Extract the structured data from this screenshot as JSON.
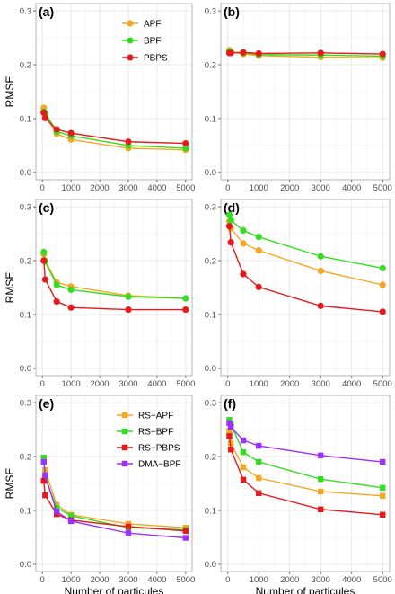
{
  "chart_data": [
    {
      "type": "line",
      "panel_label": "(a)",
      "ylabel": "RMSE",
      "xlabel": "",
      "xlim": [
        0,
        5000
      ],
      "ylim": [
        0,
        0.3
      ],
      "x_ticks": [
        0,
        1000,
        2000,
        3000,
        4000,
        5000
      ],
      "y_ticks": [
        0.0,
        0.1,
        0.2,
        0.3
      ],
      "y_tick_labels": [
        "0.0",
        "0.1",
        "0.2",
        "0.3"
      ],
      "marker": "circle",
      "legend": true,
      "legend_placement": "top-right",
      "x": [
        50,
        100,
        500,
        1000,
        3000,
        5000
      ],
      "series": [
        {
          "name": "APF",
          "color": "#f5a623",
          "values": [
            0.12,
            0.105,
            0.072,
            0.061,
            0.045,
            0.042
          ]
        },
        {
          "name": "BPF",
          "color": "#33dd22",
          "values": [
            0.113,
            0.11,
            0.076,
            0.068,
            0.05,
            0.045
          ]
        },
        {
          "name": "PBPS",
          "color": "#e41a1c",
          "values": [
            0.111,
            0.101,
            0.08,
            0.073,
            0.057,
            0.054
          ]
        }
      ]
    },
    {
      "type": "line",
      "panel_label": "(b)",
      "ylabel": "",
      "xlabel": "",
      "xlim": [
        0,
        5000
      ],
      "ylim": [
        0,
        0.3
      ],
      "x_ticks": [
        0,
        1000,
        2000,
        3000,
        4000,
        5000
      ],
      "y_ticks": [
        0.0,
        0.1,
        0.2,
        0.3
      ],
      "y_tick_labels": [
        "0.0",
        "0.1",
        "0.2",
        "0.3"
      ],
      "marker": "circle",
      "legend": false,
      "x": [
        50,
        100,
        500,
        1000,
        3000,
        5000
      ],
      "series": [
        {
          "name": "APF",
          "color": "#f5a623",
          "values": [
            0.227,
            0.224,
            0.22,
            0.217,
            0.214,
            0.213
          ]
        },
        {
          "name": "BPF",
          "color": "#33dd22",
          "values": [
            0.225,
            0.223,
            0.222,
            0.219,
            0.218,
            0.216
          ]
        },
        {
          "name": "PBPS",
          "color": "#e41a1c",
          "values": [
            0.222,
            0.222,
            0.223,
            0.221,
            0.222,
            0.22
          ]
        }
      ]
    },
    {
      "type": "line",
      "panel_label": "(c)",
      "ylabel": "RMSE",
      "xlabel": "",
      "xlim": [
        0,
        5000
      ],
      "ylim": [
        0,
        0.3
      ],
      "x_ticks": [
        0,
        1000,
        2000,
        3000,
        4000,
        5000
      ],
      "y_ticks": [
        0.0,
        0.1,
        0.2,
        0.3
      ],
      "y_tick_labels": [
        "0.0",
        "0.1",
        "0.2",
        "0.3"
      ],
      "marker": "circle",
      "legend": false,
      "x": [
        50,
        100,
        500,
        1000,
        3000,
        5000
      ],
      "series": [
        {
          "name": "APF",
          "color": "#f5a623",
          "values": [
            0.212,
            0.2,
            0.16,
            0.152,
            0.135,
            0.13
          ]
        },
        {
          "name": "BPF",
          "color": "#33dd22",
          "values": [
            0.216,
            0.198,
            0.155,
            0.146,
            0.133,
            0.13
          ]
        },
        {
          "name": "PBPS",
          "color": "#e41a1c",
          "values": [
            0.2,
            0.165,
            0.124,
            0.113,
            0.109,
            0.109
          ]
        }
      ]
    },
    {
      "type": "line",
      "panel_label": "(d)",
      "ylabel": "",
      "xlabel": "",
      "xlim": [
        0,
        5000
      ],
      "ylim": [
        0,
        0.3
      ],
      "x_ticks": [
        0,
        1000,
        2000,
        3000,
        4000,
        5000
      ],
      "y_ticks": [
        0.0,
        0.1,
        0.2,
        0.3
      ],
      "y_tick_labels": [
        "0.0",
        "0.1",
        "0.2",
        "0.3"
      ],
      "marker": "circle",
      "legend": false,
      "x": [
        50,
        100,
        500,
        1000,
        3000,
        5000
      ],
      "series": [
        {
          "name": "APF",
          "color": "#f5a623",
          "values": [
            0.273,
            0.26,
            0.232,
            0.219,
            0.181,
            0.155
          ]
        },
        {
          "name": "BPF",
          "color": "#33dd22",
          "values": [
            0.285,
            0.275,
            0.256,
            0.244,
            0.208,
            0.186
          ]
        },
        {
          "name": "PBPS",
          "color": "#e41a1c",
          "values": [
            0.264,
            0.234,
            0.175,
            0.151,
            0.116,
            0.105
          ]
        }
      ]
    },
    {
      "type": "line",
      "panel_label": "(e)",
      "ylabel": "RMSE",
      "xlabel": "Number of particules",
      "xlim": [
        0,
        5000
      ],
      "ylim": [
        0,
        0.3
      ],
      "x_ticks": [
        0,
        1000,
        2000,
        3000,
        4000,
        5000
      ],
      "y_ticks": [
        0.0,
        0.1,
        0.2,
        0.3
      ],
      "y_tick_labels": [
        "0.0",
        "0.1",
        "0.2",
        "0.3"
      ],
      "marker": "square",
      "legend": true,
      "legend_placement": "top-right",
      "x": [
        50,
        100,
        500,
        1000,
        3000,
        5000
      ],
      "series": [
        {
          "name": "RS−APF",
          "color": "#f5a623",
          "values": [
            0.155,
            0.175,
            0.11,
            0.092,
            0.075,
            0.068
          ]
        },
        {
          "name": "RS−BPF",
          "color": "#33dd22",
          "values": [
            0.198,
            0.16,
            0.105,
            0.09,
            0.068,
            0.064
          ]
        },
        {
          "name": "RS−PBPS",
          "color": "#e41a1c",
          "values": [
            0.155,
            0.128,
            0.093,
            0.082,
            0.07,
            0.062
          ]
        },
        {
          "name": "DMA−BPF",
          "color": "#9b30ff",
          "values": [
            0.19,
            0.165,
            0.098,
            0.08,
            0.058,
            0.049
          ]
        }
      ]
    },
    {
      "type": "line",
      "panel_label": "(f)",
      "ylabel": "",
      "xlabel": "Number of particules",
      "xlim": [
        0,
        5000
      ],
      "ylim": [
        0,
        0.3
      ],
      "x_ticks": [
        0,
        1000,
        2000,
        3000,
        4000,
        5000
      ],
      "y_ticks": [
        0.0,
        0.1,
        0.2,
        0.3
      ],
      "y_tick_labels": [
        "0.0",
        "0.1",
        "0.2",
        "0.3"
      ],
      "marker": "square",
      "legend": false,
      "x": [
        50,
        100,
        500,
        1000,
        3000,
        5000
      ],
      "series": [
        {
          "name": "RS−APF",
          "color": "#f5a623",
          "values": [
            0.248,
            0.225,
            0.18,
            0.16,
            0.135,
            0.127
          ]
        },
        {
          "name": "RS−BPF",
          "color": "#33dd22",
          "values": [
            0.268,
            0.26,
            0.208,
            0.19,
            0.158,
            0.142
          ]
        },
        {
          "name": "RS−PBPS",
          "color": "#e41a1c",
          "values": [
            0.238,
            0.213,
            0.157,
            0.132,
            0.102,
            0.092
          ]
        },
        {
          "name": "DMA−BPF",
          "color": "#9b30ff",
          "values": [
            0.262,
            0.255,
            0.23,
            0.22,
            0.202,
            0.19
          ]
        }
      ]
    }
  ]
}
